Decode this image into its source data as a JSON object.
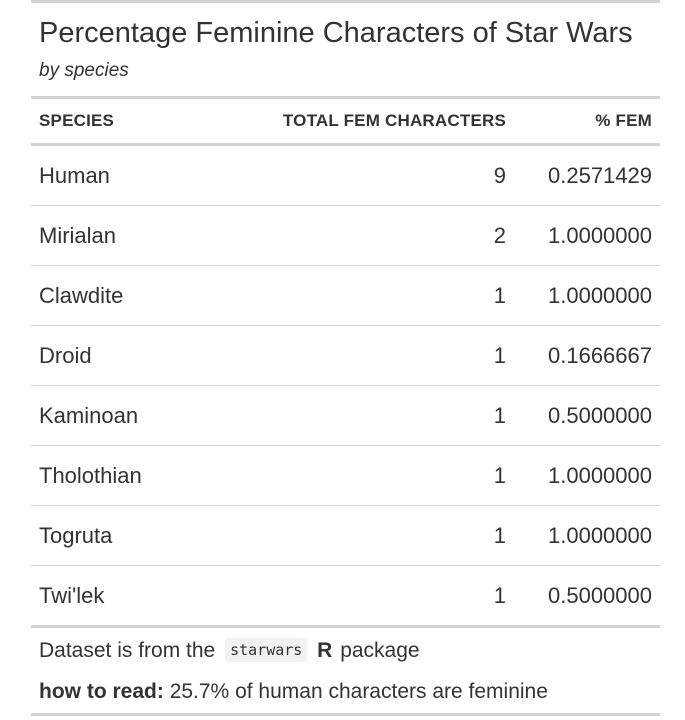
{
  "header": {
    "title": "Percentage Feminine Characters of Star Wars",
    "subtitle": "by species"
  },
  "columns": {
    "species": "SPECIES",
    "total": "TOTAL FEM CHARACTERS",
    "pct": "% FEM"
  },
  "rows": [
    {
      "species": "Human",
      "total": "9",
      "pct": "0.2571429"
    },
    {
      "species": "Mirialan",
      "total": "2",
      "pct": "1.0000000"
    },
    {
      "species": "Clawdite",
      "total": "1",
      "pct": "1.0000000"
    },
    {
      "species": "Droid",
      "total": "1",
      "pct": "0.1666667"
    },
    {
      "species": "Kaminoan",
      "total": "1",
      "pct": "0.5000000"
    },
    {
      "species": "Tholothian",
      "total": "1",
      "pct": "1.0000000"
    },
    {
      "species": "Togruta",
      "total": "1",
      "pct": "1.0000000"
    },
    {
      "species": "Twi'lek",
      "total": "1",
      "pct": "0.5000000"
    }
  ],
  "footer": {
    "source_prefix": "Dataset is from the",
    "source_code": "starwars",
    "source_r": "R",
    "source_suffix": "package",
    "note_label": "how to read:",
    "note_text": "25.7% of human characters are feminine"
  }
}
